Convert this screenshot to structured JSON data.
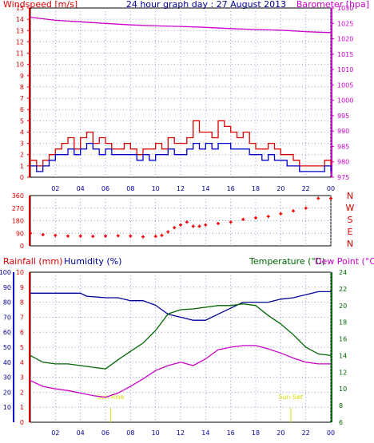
{
  "chart_data": [
    {
      "type": "line",
      "title": "24 hour graph day : 27 August 2013",
      "ylabel": "Windspeed [m/s]",
      "y2label": "Barometer [hpa]",
      "x": [
        "02",
        "04",
        "06",
        "08",
        "10",
        "12",
        "14",
        "16",
        "18",
        "20",
        "22",
        "00"
      ],
      "ylim": [
        0,
        15
      ],
      "y2lim": [
        975,
        1030
      ],
      "yticks": [
        "0",
        "1",
        "2",
        "3",
        "4",
        "5",
        "6",
        "7",
        "8",
        "9",
        "10",
        "11",
        "12",
        "13",
        "14",
        "15"
      ],
      "y2ticks": [
        "975",
        "980",
        "985",
        "990",
        "995",
        "1000",
        "1005",
        "1010",
        "1015",
        "1020",
        "1025",
        "1030"
      ],
      "grid": true,
      "series": [
        {
          "name": "Barometer [hpa]",
          "color": "#cc00cc",
          "axis": "right",
          "points": [
            [
              0,
              1027
            ],
            [
              2,
              1026
            ],
            [
              4,
              1025.5
            ],
            [
              6,
              1025
            ],
            [
              8,
              1024.5
            ],
            [
              10,
              1024.2
            ],
            [
              12,
              1024
            ],
            [
              14,
              1023.7
            ],
            [
              16,
              1023.3
            ],
            [
              18,
              1023
            ],
            [
              20,
              1022.8
            ],
            [
              22,
              1022.3
            ],
            [
              24,
              1022
            ]
          ]
        },
        {
          "name": "Windspeed gust",
          "color": "#dd0000",
          "axis": "left",
          "points": [
            [
              0,
              1.5
            ],
            [
              0.5,
              1
            ],
            [
              1,
              1.5
            ],
            [
              1.5,
              2
            ],
            [
              2,
              2.5
            ],
            [
              2.5,
              3
            ],
            [
              3,
              3.5
            ],
            [
              3.5,
              2.5
            ],
            [
              4,
              3.5
            ],
            [
              4.5,
              4
            ],
            [
              5,
              3
            ],
            [
              5.5,
              3.5
            ],
            [
              6,
              3
            ],
            [
              6.5,
              2.5
            ],
            [
              7,
              2.5
            ],
            [
              7.5,
              3
            ],
            [
              8,
              2.5
            ],
            [
              8.5,
              2
            ],
            [
              9,
              2.5
            ],
            [
              9.5,
              2.5
            ],
            [
              10,
              3
            ],
            [
              10.5,
              2.5
            ],
            [
              11,
              3.5
            ],
            [
              11.5,
              3
            ],
            [
              12,
              3
            ],
            [
              12.5,
              3.5
            ],
            [
              13,
              5
            ],
            [
              13.5,
              4
            ],
            [
              14,
              4
            ],
            [
              14.5,
              3.5
            ],
            [
              15,
              5
            ],
            [
              15.5,
              4.5
            ],
            [
              16,
              4
            ],
            [
              16.5,
              3.5
            ],
            [
              17,
              4
            ],
            [
              17.5,
              3
            ],
            [
              18,
              2.5
            ],
            [
              18.5,
              2.5
            ],
            [
              19,
              3
            ],
            [
              19.5,
              2.5
            ],
            [
              20,
              2
            ],
            [
              20.5,
              2
            ],
            [
              21,
              1.5
            ],
            [
              21.5,
              1
            ],
            [
              22,
              1
            ],
            [
              22.5,
              1
            ],
            [
              23,
              1
            ],
            [
              23.5,
              1.5
            ],
            [
              24,
              1
            ]
          ]
        },
        {
          "name": "Windspeed average",
          "color": "#0000cc",
          "axis": "left",
          "points": [
            [
              0,
              1
            ],
            [
              0.5,
              0.5
            ],
            [
              1,
              1
            ],
            [
              1.5,
              1.5
            ],
            [
              2,
              2
            ],
            [
              2.5,
              2
            ],
            [
              3,
              2.5
            ],
            [
              3.5,
              2
            ],
            [
              4,
              2.5
            ],
            [
              4.5,
              3
            ],
            [
              5,
              2.5
            ],
            [
              5.5,
              2
            ],
            [
              6,
              2.5
            ],
            [
              6.5,
              2
            ],
            [
              7,
              2
            ],
            [
              7.5,
              2
            ],
            [
              8,
              2
            ],
            [
              8.5,
              1.5
            ],
            [
              9,
              2
            ],
            [
              9.5,
              1.5
            ],
            [
              10,
              2
            ],
            [
              10.5,
              2
            ],
            [
              11,
              2.5
            ],
            [
              11.5,
              2
            ],
            [
              12,
              2
            ],
            [
              12.5,
              2.5
            ],
            [
              13,
              3
            ],
            [
              13.5,
              2.5
            ],
            [
              14,
              3
            ],
            [
              14.5,
              2.5
            ],
            [
              15,
              3
            ],
            [
              15.5,
              3
            ],
            [
              16,
              2.5
            ],
            [
              16.5,
              2.5
            ],
            [
              17,
              2.5
            ],
            [
              17.5,
              2
            ],
            [
              18,
              2
            ],
            [
              18.5,
              1.5
            ],
            [
              19,
              2
            ],
            [
              19.5,
              1.5
            ],
            [
              20,
              1.5
            ],
            [
              20.5,
              1
            ],
            [
              21,
              1
            ],
            [
              21.5,
              0.5
            ],
            [
              22,
              0.5
            ],
            [
              22.5,
              0.5
            ],
            [
              23,
              0.5
            ],
            [
              23.5,
              1
            ],
            [
              24,
              0.5
            ]
          ]
        }
      ]
    },
    {
      "type": "scatter",
      "title": "",
      "ylabel": "",
      "x": [
        "02",
        "04",
        "06",
        "08",
        "10",
        "12",
        "14",
        "16",
        "18",
        "20",
        "22",
        "00"
      ],
      "ylim": [
        0,
        360
      ],
      "yticks": [
        "0",
        "90",
        "180",
        "270",
        "360"
      ],
      "y2ticks": [
        "N",
        "E",
        "S",
        "W",
        "N"
      ],
      "grid": true,
      "series": [
        {
          "name": "Wind direction",
          "color": "#ee0000",
          "points": [
            [
              0,
              90
            ],
            [
              1,
              80
            ],
            [
              2,
              75
            ],
            [
              3,
              70
            ],
            [
              4,
              70
            ],
            [
              5,
              68
            ],
            [
              6,
              70
            ],
            [
              7,
              72
            ],
            [
              8,
              70
            ],
            [
              9,
              65
            ],
            [
              10,
              68
            ],
            [
              10.5,
              75
            ],
            [
              11,
              100
            ],
            [
              11.5,
              130
            ],
            [
              12,
              150
            ],
            [
              12.5,
              170
            ],
            [
              13,
              140
            ],
            [
              13.5,
              140
            ],
            [
              14,
              150
            ],
            [
              15,
              160
            ],
            [
              16,
              170
            ],
            [
              17,
              190
            ],
            [
              18,
              200
            ],
            [
              19,
              210
            ],
            [
              20,
              230
            ],
            [
              21,
              250
            ],
            [
              22,
              270
            ],
            [
              23,
              340
            ],
            [
              24,
              340
            ]
          ]
        }
      ]
    },
    {
      "type": "line",
      "title": "",
      "ylabel": "Rainfall (mm)",
      "ylabel2": "Humidity (%)",
      "y2label": "Temperature (°C)",
      "y2label2": "Dew Point (°C)",
      "x": [
        "02",
        "04",
        "06",
        "08",
        "10",
        "12",
        "14",
        "16",
        "18",
        "20",
        "22",
        "00"
      ],
      "ylim": [
        0,
        10
      ],
      "yticks": [
        "0",
        "1",
        "2",
        "3",
        "4",
        "5",
        "6",
        "7",
        "8",
        "9",
        "10"
      ],
      "humidity_ticks": [
        "10",
        "20",
        "30",
        "40",
        "50",
        "60",
        "70",
        "80",
        "90",
        "100"
      ],
      "y2lim": [
        6,
        24
      ],
      "y2ticks": [
        "6",
        "8",
        "10",
        "12",
        "14",
        "16",
        "18",
        "20",
        "22",
        "24"
      ],
      "annotations": [
        {
          "text": "Sun Rise",
          "x": 6.4
        },
        {
          "text": "Sun Set",
          "x": 20.8
        }
      ],
      "grid": true,
      "series": [
        {
          "name": "Humidity (%)",
          "color": "#000099",
          "axis": "humidity",
          "points": [
            [
              0,
              86
            ],
            [
              2,
              86
            ],
            [
              4,
              86
            ],
            [
              4.5,
              84
            ],
            [
              6,
              83
            ],
            [
              7,
              83
            ],
            [
              8,
              81
            ],
            [
              9,
              81
            ],
            [
              10,
              78
            ],
            [
              11,
              72
            ],
            [
              12,
              70
            ],
            [
              13,
              68
            ],
            [
              14,
              68
            ],
            [
              15,
              72
            ],
            [
              16,
              76
            ],
            [
              17,
              80
            ],
            [
              18,
              80
            ],
            [
              19,
              80
            ],
            [
              20,
              82
            ],
            [
              21,
              83
            ],
            [
              22,
              85
            ],
            [
              23,
              87
            ],
            [
              24,
              87
            ]
          ]
        },
        {
          "name": "Temperature (°C)",
          "color": "#006600",
          "axis": "right",
          "points": [
            [
              0,
              14
            ],
            [
              1,
              13.2
            ],
            [
              2,
              13
            ],
            [
              3,
              13
            ],
            [
              4,
              12.8
            ],
            [
              5,
              12.6
            ],
            [
              6,
              12.4
            ],
            [
              7,
              13.5
            ],
            [
              8,
              14.5
            ],
            [
              9,
              15.5
            ],
            [
              10,
              17
            ],
            [
              11,
              19
            ],
            [
              12,
              19.5
            ],
            [
              13,
              19.6
            ],
            [
              14,
              19.8
            ],
            [
              15,
              20
            ],
            [
              16,
              20
            ],
            [
              17,
              20.2
            ],
            [
              18,
              20
            ],
            [
              19,
              18.8
            ],
            [
              20,
              17.8
            ],
            [
              21,
              16.5
            ],
            [
              22,
              15
            ],
            [
              23,
              14.2
            ],
            [
              24,
              14
            ]
          ]
        },
        {
          "name": "Dew Point (°C)",
          "color": "#cc00cc",
          "axis": "right",
          "points": [
            [
              0,
              11
            ],
            [
              1,
              10.3
            ],
            [
              2,
              10
            ],
            [
              3,
              9.8
            ],
            [
              4,
              9.5
            ],
            [
              5,
              9.2
            ],
            [
              6,
              9
            ],
            [
              7,
              9.5
            ],
            [
              8,
              10.3
            ],
            [
              9,
              11.2
            ],
            [
              10,
              12.2
            ],
            [
              11,
              12.8
            ],
            [
              12,
              13.2
            ],
            [
              13,
              12.8
            ],
            [
              14,
              13.6
            ],
            [
              15,
              14.7
            ],
            [
              16,
              15
            ],
            [
              17,
              15.2
            ],
            [
              18,
              15.2
            ],
            [
              19,
              14.8
            ],
            [
              20,
              14.3
            ],
            [
              21,
              13.7
            ],
            [
              22,
              13.2
            ],
            [
              23,
              13
            ],
            [
              24,
              13
            ]
          ]
        }
      ]
    }
  ]
}
